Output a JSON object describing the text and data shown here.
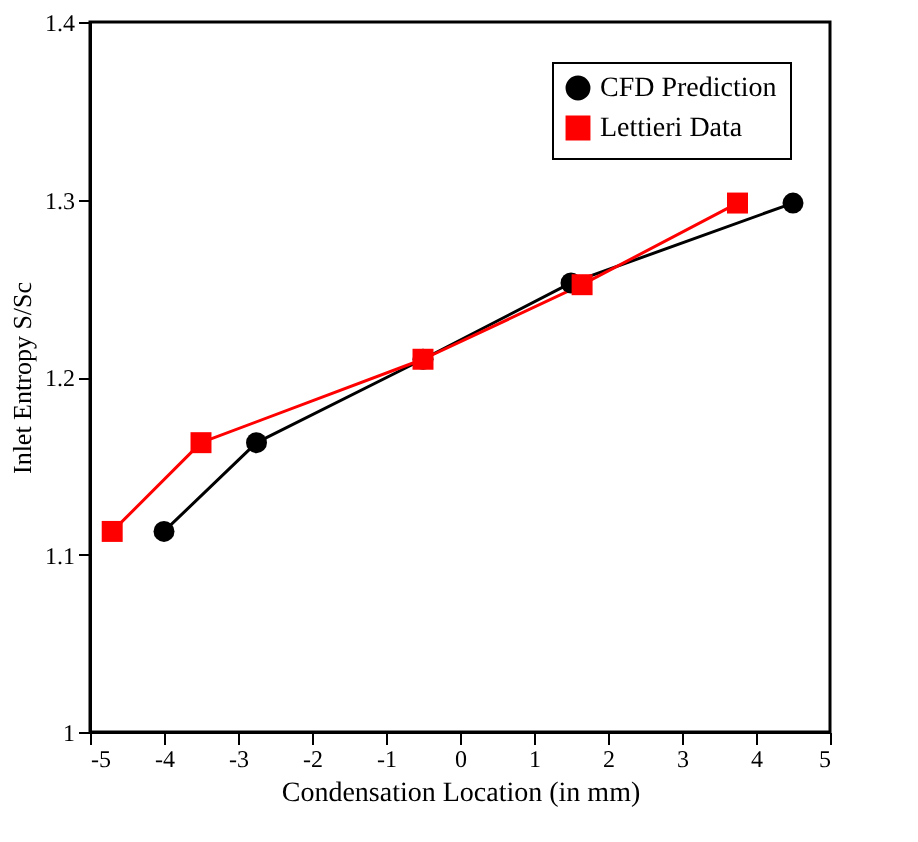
{
  "chart_data": {
    "type": "line",
    "xlabel": "Condensation Location (in mm)",
    "ylabel": "Inlet  Entropy S/Sc",
    "xlim": [
      -5,
      5
    ],
    "xticks": [
      -5,
      -4,
      -3,
      -2,
      -1,
      0,
      1,
      2,
      3,
      4,
      5
    ],
    "ylim": [
      1,
      1.4
    ],
    "yticks": [
      1,
      1.1,
      1.2,
      1.3,
      1.4
    ],
    "grid": false,
    "legend": "top right",
    "series": [
      {
        "name": "CFD Prediction",
        "color": "#000000",
        "marker": "circle",
        "x": [
          -4.0,
          -2.75,
          -0.5,
          1.5,
          4.5
        ],
        "values": [
          1.113,
          1.163,
          1.21,
          1.253,
          1.298
        ]
      },
      {
        "name": "Lettieri Data",
        "color": "#ff0000",
        "marker": "square",
        "x": [
          -4.7,
          -3.5,
          -0.5,
          1.65,
          3.75
        ],
        "values": [
          1.113,
          1.163,
          1.21,
          1.252,
          1.298
        ]
      }
    ]
  }
}
